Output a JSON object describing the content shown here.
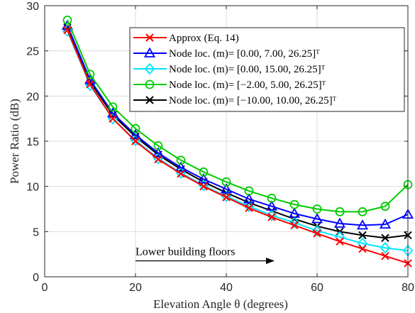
{
  "chart_data": {
    "type": "line",
    "xlabel": "Elevation Angle θ (degrees)",
    "ylabel": "Power Ratio (dB)",
    "xlim": [
      0,
      80
    ],
    "ylim": [
      0,
      30
    ],
    "xticks": [
      0,
      20,
      40,
      60,
      80
    ],
    "yticks": [
      0,
      5,
      10,
      15,
      20,
      25,
      30
    ],
    "grid": true,
    "legend_position": "top-right",
    "x": [
      5,
      10,
      15,
      20,
      25,
      30,
      35,
      40,
      45,
      50,
      55,
      60,
      65,
      70,
      75,
      80
    ],
    "series": [
      {
        "name": "Approx (Eq. 14)",
        "color": "#ff0000",
        "marker": "x",
        "values": [
          27.3,
          21.3,
          17.5,
          15.0,
          13.0,
          11.4,
          10.0,
          8.8,
          7.6,
          6.6,
          5.7,
          4.8,
          3.9,
          3.1,
          2.3,
          1.5
        ]
      },
      {
        "name": "Node loc. (m)= [0.00, 7.00, 26.25]ᵀ",
        "color": "#0000ff",
        "marker": "triangle",
        "values": [
          27.8,
          21.8,
          18.1,
          15.7,
          13.7,
          12.1,
          10.8,
          9.7,
          8.6,
          7.8,
          7.0,
          6.4,
          5.9,
          5.7,
          5.8,
          6.9
        ]
      },
      {
        "name": "Node loc. (m)= [0.00, 15.00, 26.25]ᵀ",
        "color": "#00e5ff",
        "marker": "diamond",
        "values": [
          27.2,
          21.2,
          17.5,
          15.1,
          13.1,
          11.5,
          10.1,
          8.9,
          7.8,
          6.8,
          6.0,
          5.1,
          4.4,
          3.7,
          3.2,
          2.9
        ]
      },
      {
        "name": "Node loc. (m)= [−2.00, 5.00, 26.25]ᵀ",
        "color": "#00cc00",
        "marker": "circle",
        "values": [
          28.4,
          22.4,
          18.8,
          16.4,
          14.5,
          12.9,
          11.6,
          10.5,
          9.5,
          8.7,
          8.0,
          7.5,
          7.2,
          7.2,
          7.8,
          10.2
        ]
      },
      {
        "name": "Node loc. (m)= [−10.00, 10.00, 26.25]ᵀ",
        "color": "#000000",
        "marker": "x",
        "values": [
          27.6,
          21.6,
          17.9,
          15.5,
          13.5,
          11.9,
          10.5,
          9.3,
          8.2,
          7.3,
          6.4,
          5.6,
          5.0,
          4.6,
          4.3,
          4.6
        ]
      }
    ],
    "annotation": {
      "text": "Lower building floors",
      "arrow_from": [
        20,
        2.0
      ],
      "arrow_to": [
        50,
        2.0
      ]
    }
  }
}
